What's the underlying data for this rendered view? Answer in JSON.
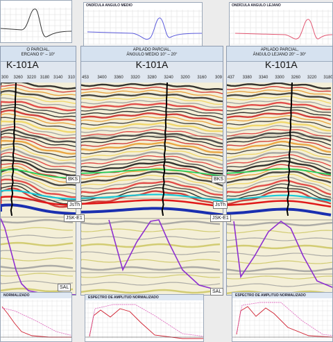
{
  "wavelet_windows": {
    "left_title": "",
    "middle_title": "ONDÍCULA ANGULO MEDIO",
    "right_title": "ONDÍCULA ANGULO LEJANO"
  },
  "panels": {
    "left": {
      "header_line1": "O PARCIAL,",
      "header_line2": "ERCANO 0° – 10°",
      "well_name": "K-101A",
      "ticks": [
        "300",
        "3260",
        "3220",
        "3180",
        "3140",
        "310"
      ]
    },
    "middle": {
      "header_line1": "APILADO PARCIAL,",
      "header_line2": "ÁNGULO MEDIO 10° – 20°",
      "well_name": "K-101A",
      "ticks": [
        "453",
        "3400",
        "3360",
        "3320",
        "3280",
        "3240",
        "3200",
        "3160",
        "309"
      ]
    },
    "right": {
      "header_line1": "APILADO PARCIAL,",
      "header_line2": "ÁNGULO LEJANO 20° – 30°",
      "well_name": "K-101A",
      "ticks": [
        "437",
        "3380",
        "3340",
        "3300",
        "3260",
        "3220",
        "3180"
      ]
    }
  },
  "horizon_labels": {
    "bks": "BKS",
    "bks_right": "BKS",
    "jsth": "JsTh",
    "jsth_right": "JsTh",
    "jske1": "JSK-E1",
    "jske1_right": "JSK-E1",
    "sal": "SAL",
    "sal_right": "SAL"
  },
  "spectra": {
    "left_title": "NORMALIZADO",
    "middle_title": "ESPECTRO DE AMPLITUD NORMALIZADO",
    "right_title": "ESPECTRO DE AMPLITUD NORMALIZADO"
  },
  "colors": {
    "wavelet_left": "#333333",
    "wavelet_middle": "#5a5adc",
    "wavelet_right": "#e25470",
    "horizon_bks": "#22cc55",
    "horizon_top": "#18c8d8",
    "horizon_jsth": "#e01818",
    "horizon_jske1": "#1a2fb0",
    "log_curve": "#8e2fd0",
    "well_track": "#000000"
  }
}
